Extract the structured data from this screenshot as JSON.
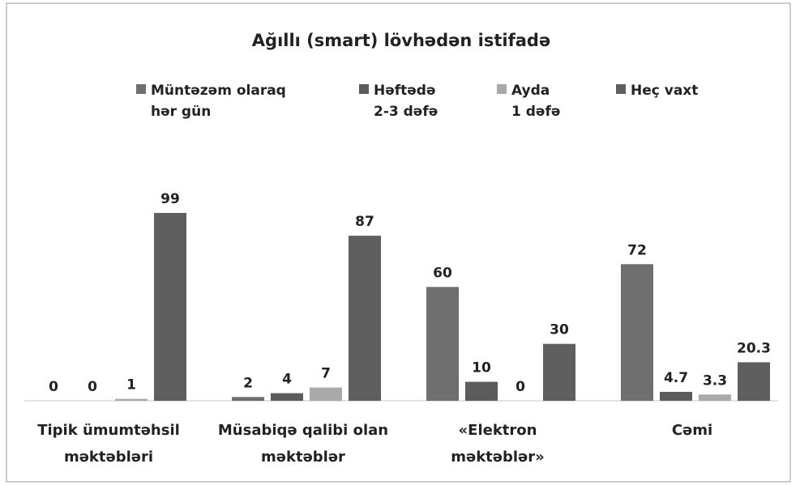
{
  "chart_data": {
    "type": "bar",
    "title": "Ağıllı (smart) lövhədən istifadə",
    "categories": [
      "Tipik ümumtəhsil\nməktəbləri",
      "Müsabiqə qalibi olan\nməktəblər",
      "«Elektron\nməktəblər»",
      "Cəmi"
    ],
    "series": [
      {
        "name": "Müntəzəm olaraq\nhər gün",
        "color": "#6f6f6f",
        "values": [
          0,
          2,
          60,
          72
        ]
      },
      {
        "name": "Həftədə\n2-3 dəfə",
        "color": "#5c5c5c",
        "values": [
          0,
          4,
          10,
          4.7
        ]
      },
      {
        "name": "Ayda\n1 dəfə",
        "color": "#a9a9a9",
        "values": [
          1,
          7,
          0,
          3.3
        ]
      },
      {
        "name": "Heç vaxt",
        "color": "#5f5f5f",
        "values": [
          99,
          87,
          30,
          20.3
        ]
      }
    ]
  }
}
